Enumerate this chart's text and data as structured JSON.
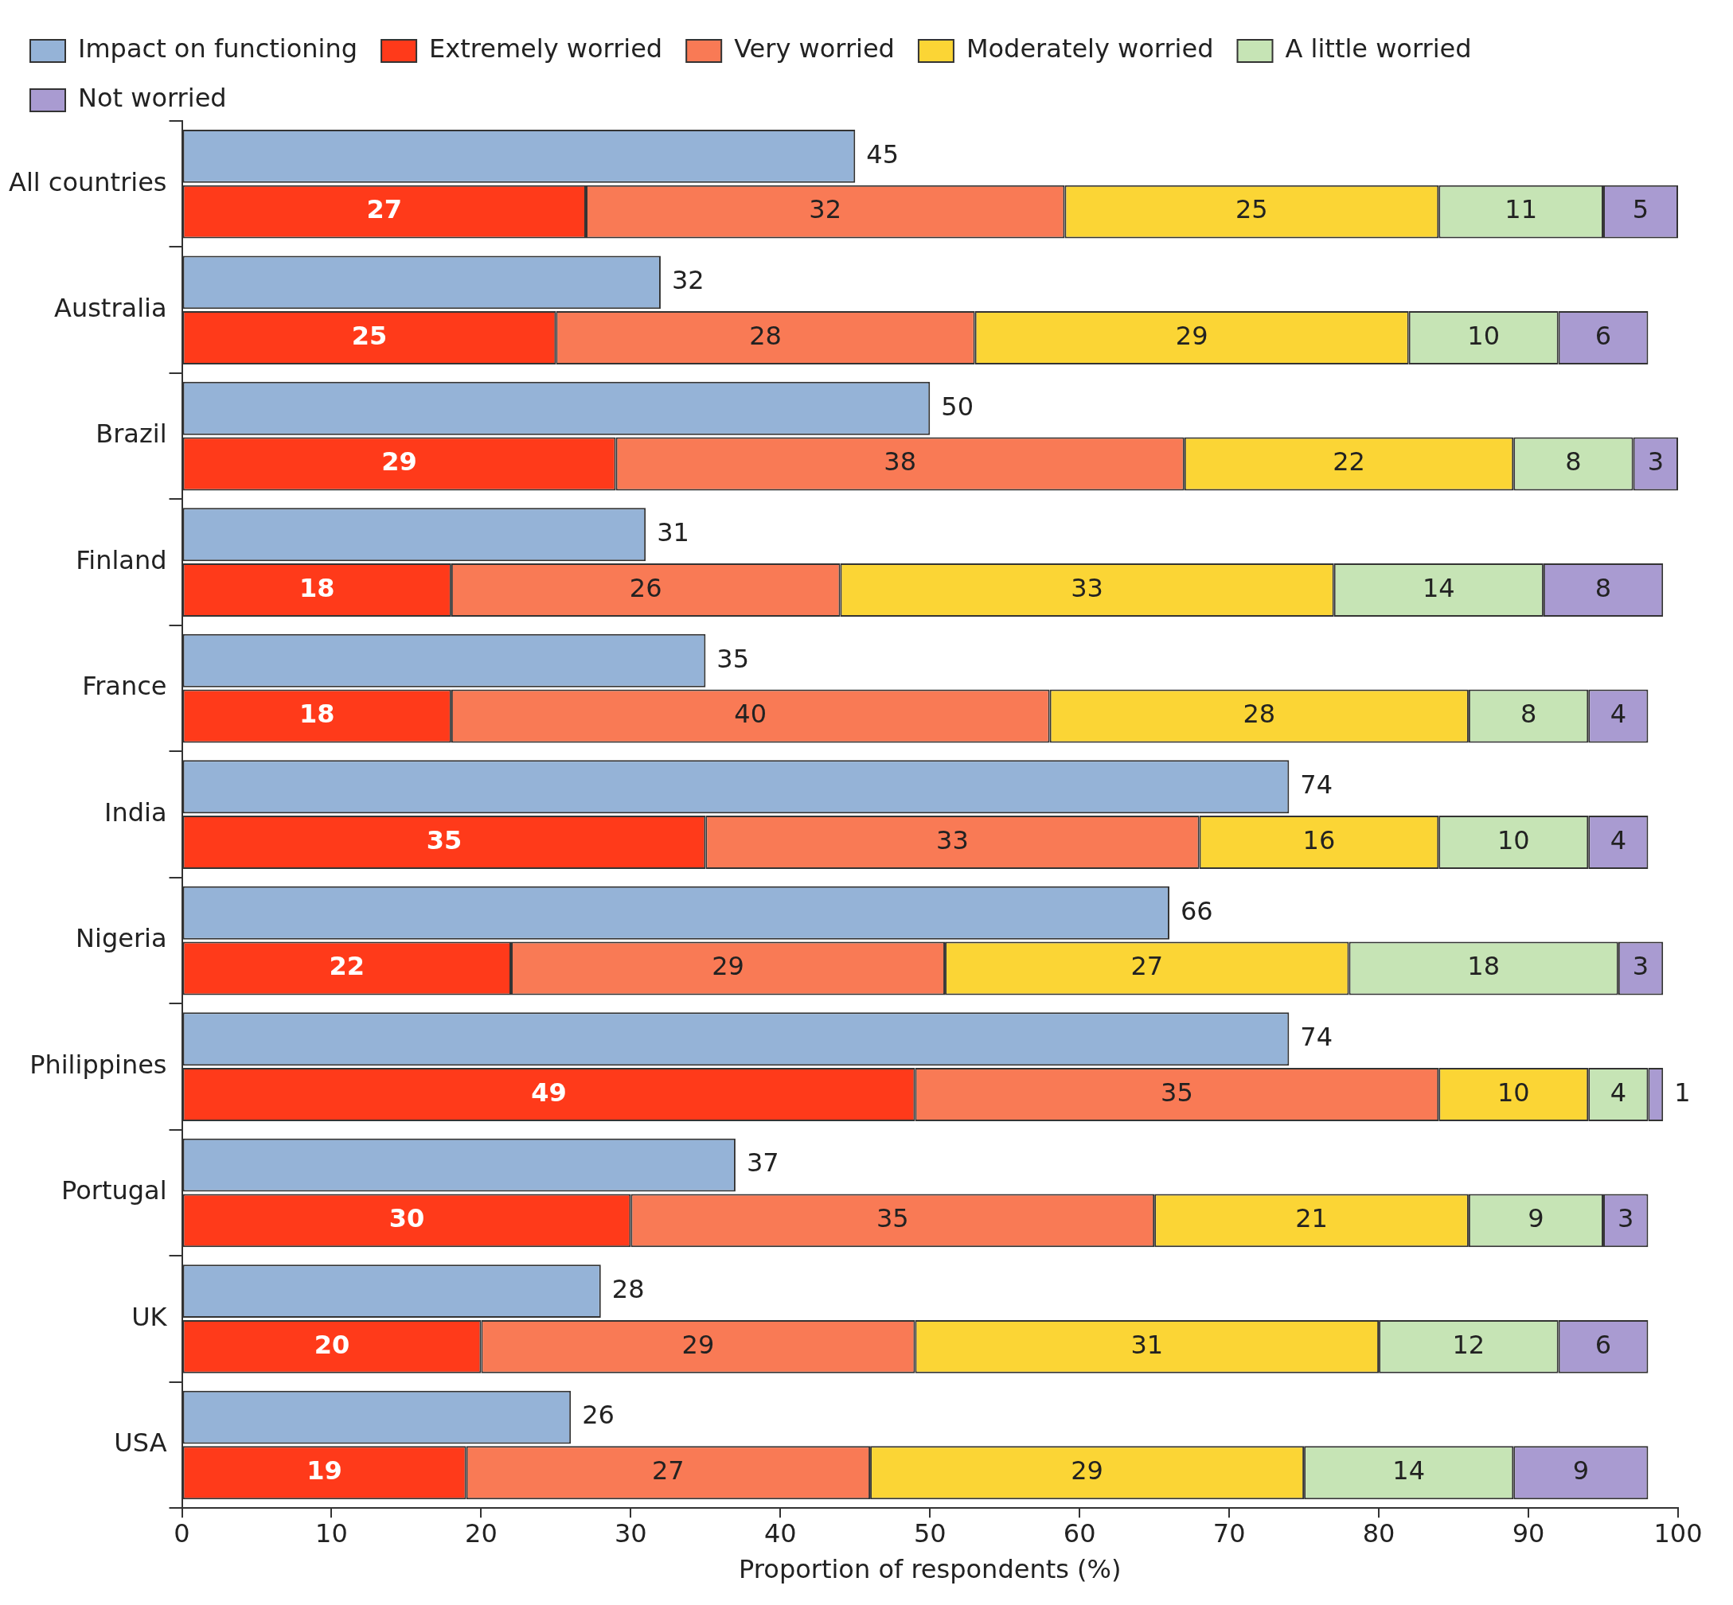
{
  "chart_data": {
    "type": "bar",
    "orientation": "horizontal",
    "xlabel": "Proportion of respondents (%)",
    "categories": [
      "All countries",
      "Australia",
      "Brazil",
      "Finland",
      "France",
      "India",
      "Nigeria",
      "Philippines",
      "Portugal",
      "UK",
      "USA"
    ],
    "series": [
      {
        "name": "Impact on functioning",
        "color": "#95b3d7",
        "values": [
          45,
          32,
          50,
          31,
          35,
          74,
          66,
          74,
          37,
          28,
          26
        ]
      },
      {
        "name": "Extremely worried",
        "color": "#ff3a1a",
        "values": [
          27,
          25,
          29,
          18,
          18,
          35,
          22,
          49,
          30,
          20,
          19
        ],
        "base": [
          0,
          0,
          0,
          0,
          0,
          0,
          0,
          0,
          0,
          0,
          0
        ]
      },
      {
        "name": "Very worried",
        "color": "#f97a55",
        "values": [
          32,
          28,
          38,
          26,
          40,
          33,
          29,
          35,
          35,
          29,
          27
        ],
        "base": [
          27,
          25,
          29,
          18,
          18,
          35,
          22,
          49,
          30,
          20,
          19
        ]
      },
      {
        "name": "Moderately worried",
        "color": "#fbd535",
        "values": [
          25,
          29,
          22,
          33,
          28,
          16,
          27,
          10,
          21,
          31,
          29
        ],
        "base": [
          59,
          53,
          67,
          44,
          58,
          68,
          51,
          84,
          65,
          49,
          46
        ]
      },
      {
        "name": "A little worried",
        "color": "#c6e4b5",
        "values": [
          11,
          10,
          8,
          14,
          8,
          10,
          18,
          4,
          9,
          12,
          14
        ],
        "base": [
          84,
          82,
          89,
          77,
          86,
          84,
          78,
          94,
          86,
          80,
          75
        ]
      },
      {
        "name": "Not worried",
        "color": "#a99bd1",
        "values": [
          5,
          6,
          3,
          8,
          4,
          4,
          3,
          1,
          3,
          6,
          9
        ],
        "base": [
          95,
          92,
          97,
          91,
          94,
          94,
          96,
          98,
          95,
          92,
          89
        ]
      }
    ],
    "xlim": [
      0,
      100
    ],
    "xticks": [
      0,
      10,
      20,
      30,
      40,
      50,
      60,
      70,
      80,
      90,
      100
    ],
    "grid": false,
    "legend": "top",
    "data_labels": true
  }
}
